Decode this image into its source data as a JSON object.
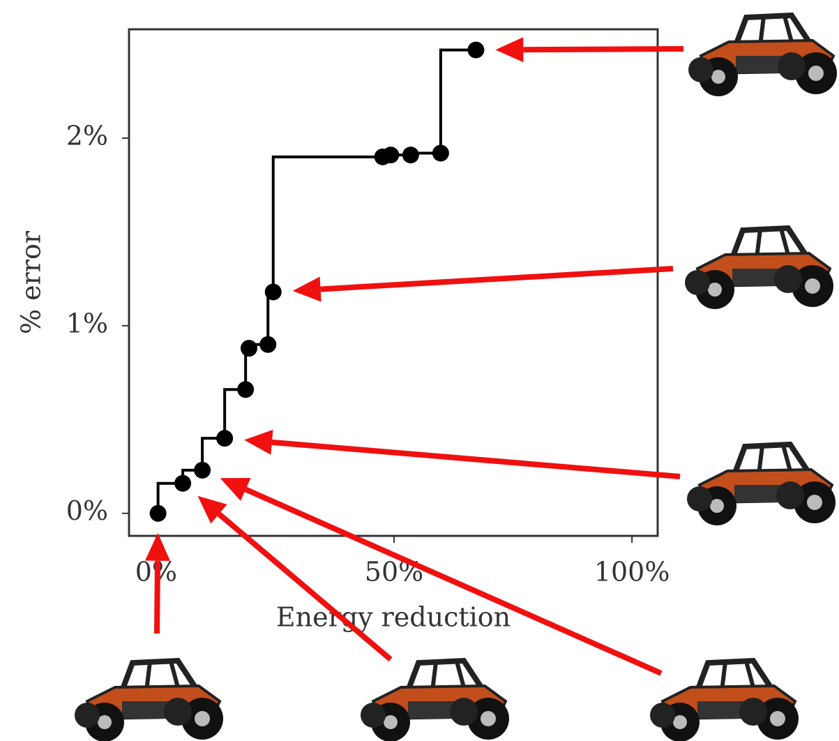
{
  "chart_data": {
    "type": "step",
    "x_label": "Energy reduction",
    "y_label": "% error",
    "x": [
      0.4,
      5.6,
      9.7,
      14.4,
      18.8,
      19.5,
      23.5,
      24.6,
      47.6,
      49.3,
      53.5,
      59.8,
      67.2
    ],
    "values": [
      0.0,
      0.16,
      0.23,
      0.4,
      0.66,
      0.88,
      0.9,
      1.18,
      1.9,
      1.91,
      1.91,
      1.92,
      2.47
    ],
    "color": "#000000",
    "xlim": [
      -5.7,
      105.4
    ],
    "ylim": [
      -0.12,
      2.58
    ],
    "xticks": [
      {
        "value": 0,
        "label": "0%"
      },
      {
        "value": 50,
        "label": "50%"
      },
      {
        "value": 100,
        "label": "100%"
      }
    ],
    "yticks": [
      {
        "value": 0,
        "label": "0%"
      },
      {
        "value": 1,
        "label": "1%"
      },
      {
        "value": 2,
        "label": "2%"
      }
    ]
  }
}
